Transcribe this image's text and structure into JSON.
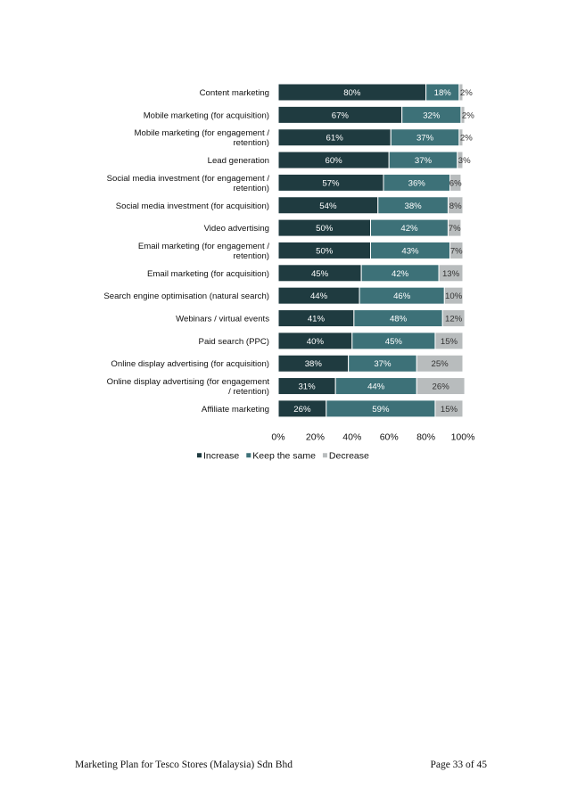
{
  "chart_data": {
    "type": "bar",
    "orientation": "horizontal-stacked-100",
    "categories": [
      [
        "Content marketing"
      ],
      [
        "Mobile marketing (for acquisition)"
      ],
      [
        "Mobile marketing (for engagement /",
        "retention)"
      ],
      [
        "Lead generation"
      ],
      [
        "Social media investment (for engagement /",
        "retention)"
      ],
      [
        "Social media investment (for acquisition)"
      ],
      [
        "Video advertising"
      ],
      [
        "Email marketing (for engagement /",
        "retention)"
      ],
      [
        "Email marketing (for acquisition)"
      ],
      [
        "Search engine optimisation (natural search)"
      ],
      [
        "Webinars / virtual events"
      ],
      [
        "Paid search (PPC)"
      ],
      [
        "Online display advertising (for acquisition)"
      ],
      [
        "Online display advertising (for engagement",
        "/ retention)"
      ],
      [
        "Affiliate marketing"
      ]
    ],
    "series": [
      {
        "name": "Increase",
        "color": "#1f3b40",
        "label_color": "#ffffff",
        "values": [
          80,
          67,
          61,
          60,
          57,
          54,
          50,
          50,
          45,
          44,
          41,
          40,
          38,
          31,
          26
        ]
      },
      {
        "name": "Keep the same",
        "color": "#3d7178",
        "label_color": "#ffffff",
        "values": [
          18,
          32,
          37,
          37,
          36,
          38,
          42,
          43,
          42,
          46,
          48,
          45,
          37,
          44,
          59
        ]
      },
      {
        "name": "Decrease",
        "color": "#b8bcbd",
        "label_color": "#333333",
        "values": [
          2,
          2,
          2,
          3,
          6,
          8,
          7,
          7,
          13,
          10,
          12,
          15,
          25,
          26,
          15
        ]
      }
    ],
    "x_ticks": [
      "0%",
      "20%",
      "40%",
      "60%",
      "80%",
      "100%"
    ],
    "xlim": [
      0,
      100
    ],
    "legend_position": "bottom",
    "grid": false
  },
  "footer": {
    "left": "Marketing Plan for Tesco Stores (Malaysia) Sdn Bhd",
    "right": "Page 33 of 45"
  }
}
